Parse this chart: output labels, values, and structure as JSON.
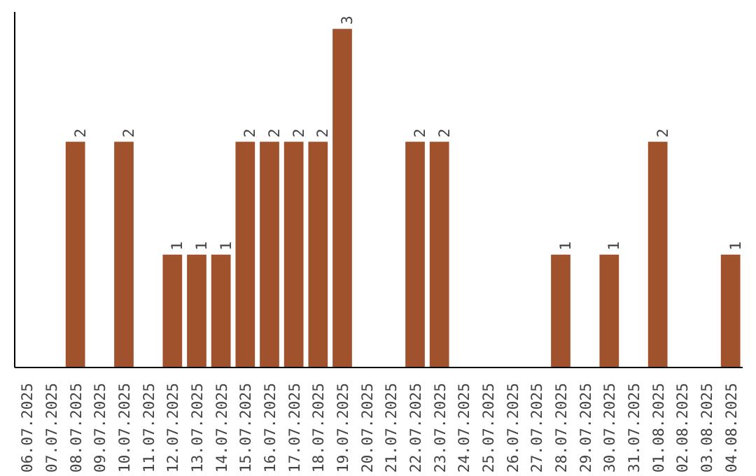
{
  "chart_data": {
    "type": "bar",
    "categories": [
      "06.07.2025",
      "07.07.2025",
      "08.07.2025",
      "09.07.2025",
      "10.07.2025",
      "11.07.2025",
      "12.07.2025",
      "13.07.2025",
      "14.07.2025",
      "15.07.2025",
      "16.07.2025",
      "17.07.2025",
      "18.07.2025",
      "19.07.2025",
      "20.07.2025",
      "21.07.2025",
      "22.07.2025",
      "23.07.2025",
      "24.07.2025",
      "25.07.2025",
      "26.07.2025",
      "27.07.2025",
      "28.07.2025",
      "29.07.2025",
      "30.07.2025",
      "31.07.2025",
      "01.08.2025",
      "02.08.2025",
      "03.08.2025",
      "04.08.2025"
    ],
    "values": [
      0,
      0,
      2,
      0,
      2,
      0,
      1,
      1,
      1,
      2,
      2,
      2,
      2,
      3,
      0,
      0,
      2,
      2,
      0,
      0,
      0,
      0,
      1,
      0,
      1,
      0,
      2,
      0,
      0,
      1
    ],
    "value_labels": [
      null,
      null,
      "2",
      null,
      "2",
      null,
      "1",
      "1",
      "1",
      "2",
      "2",
      "2",
      "2",
      "3",
      null,
      null,
      "2",
      "2",
      null,
      null,
      null,
      null,
      "1",
      null,
      "1",
      null,
      "2",
      null,
      null,
      "1"
    ],
    "color": "#a0522d",
    "grid": false,
    "tick_labels": "x"
  }
}
